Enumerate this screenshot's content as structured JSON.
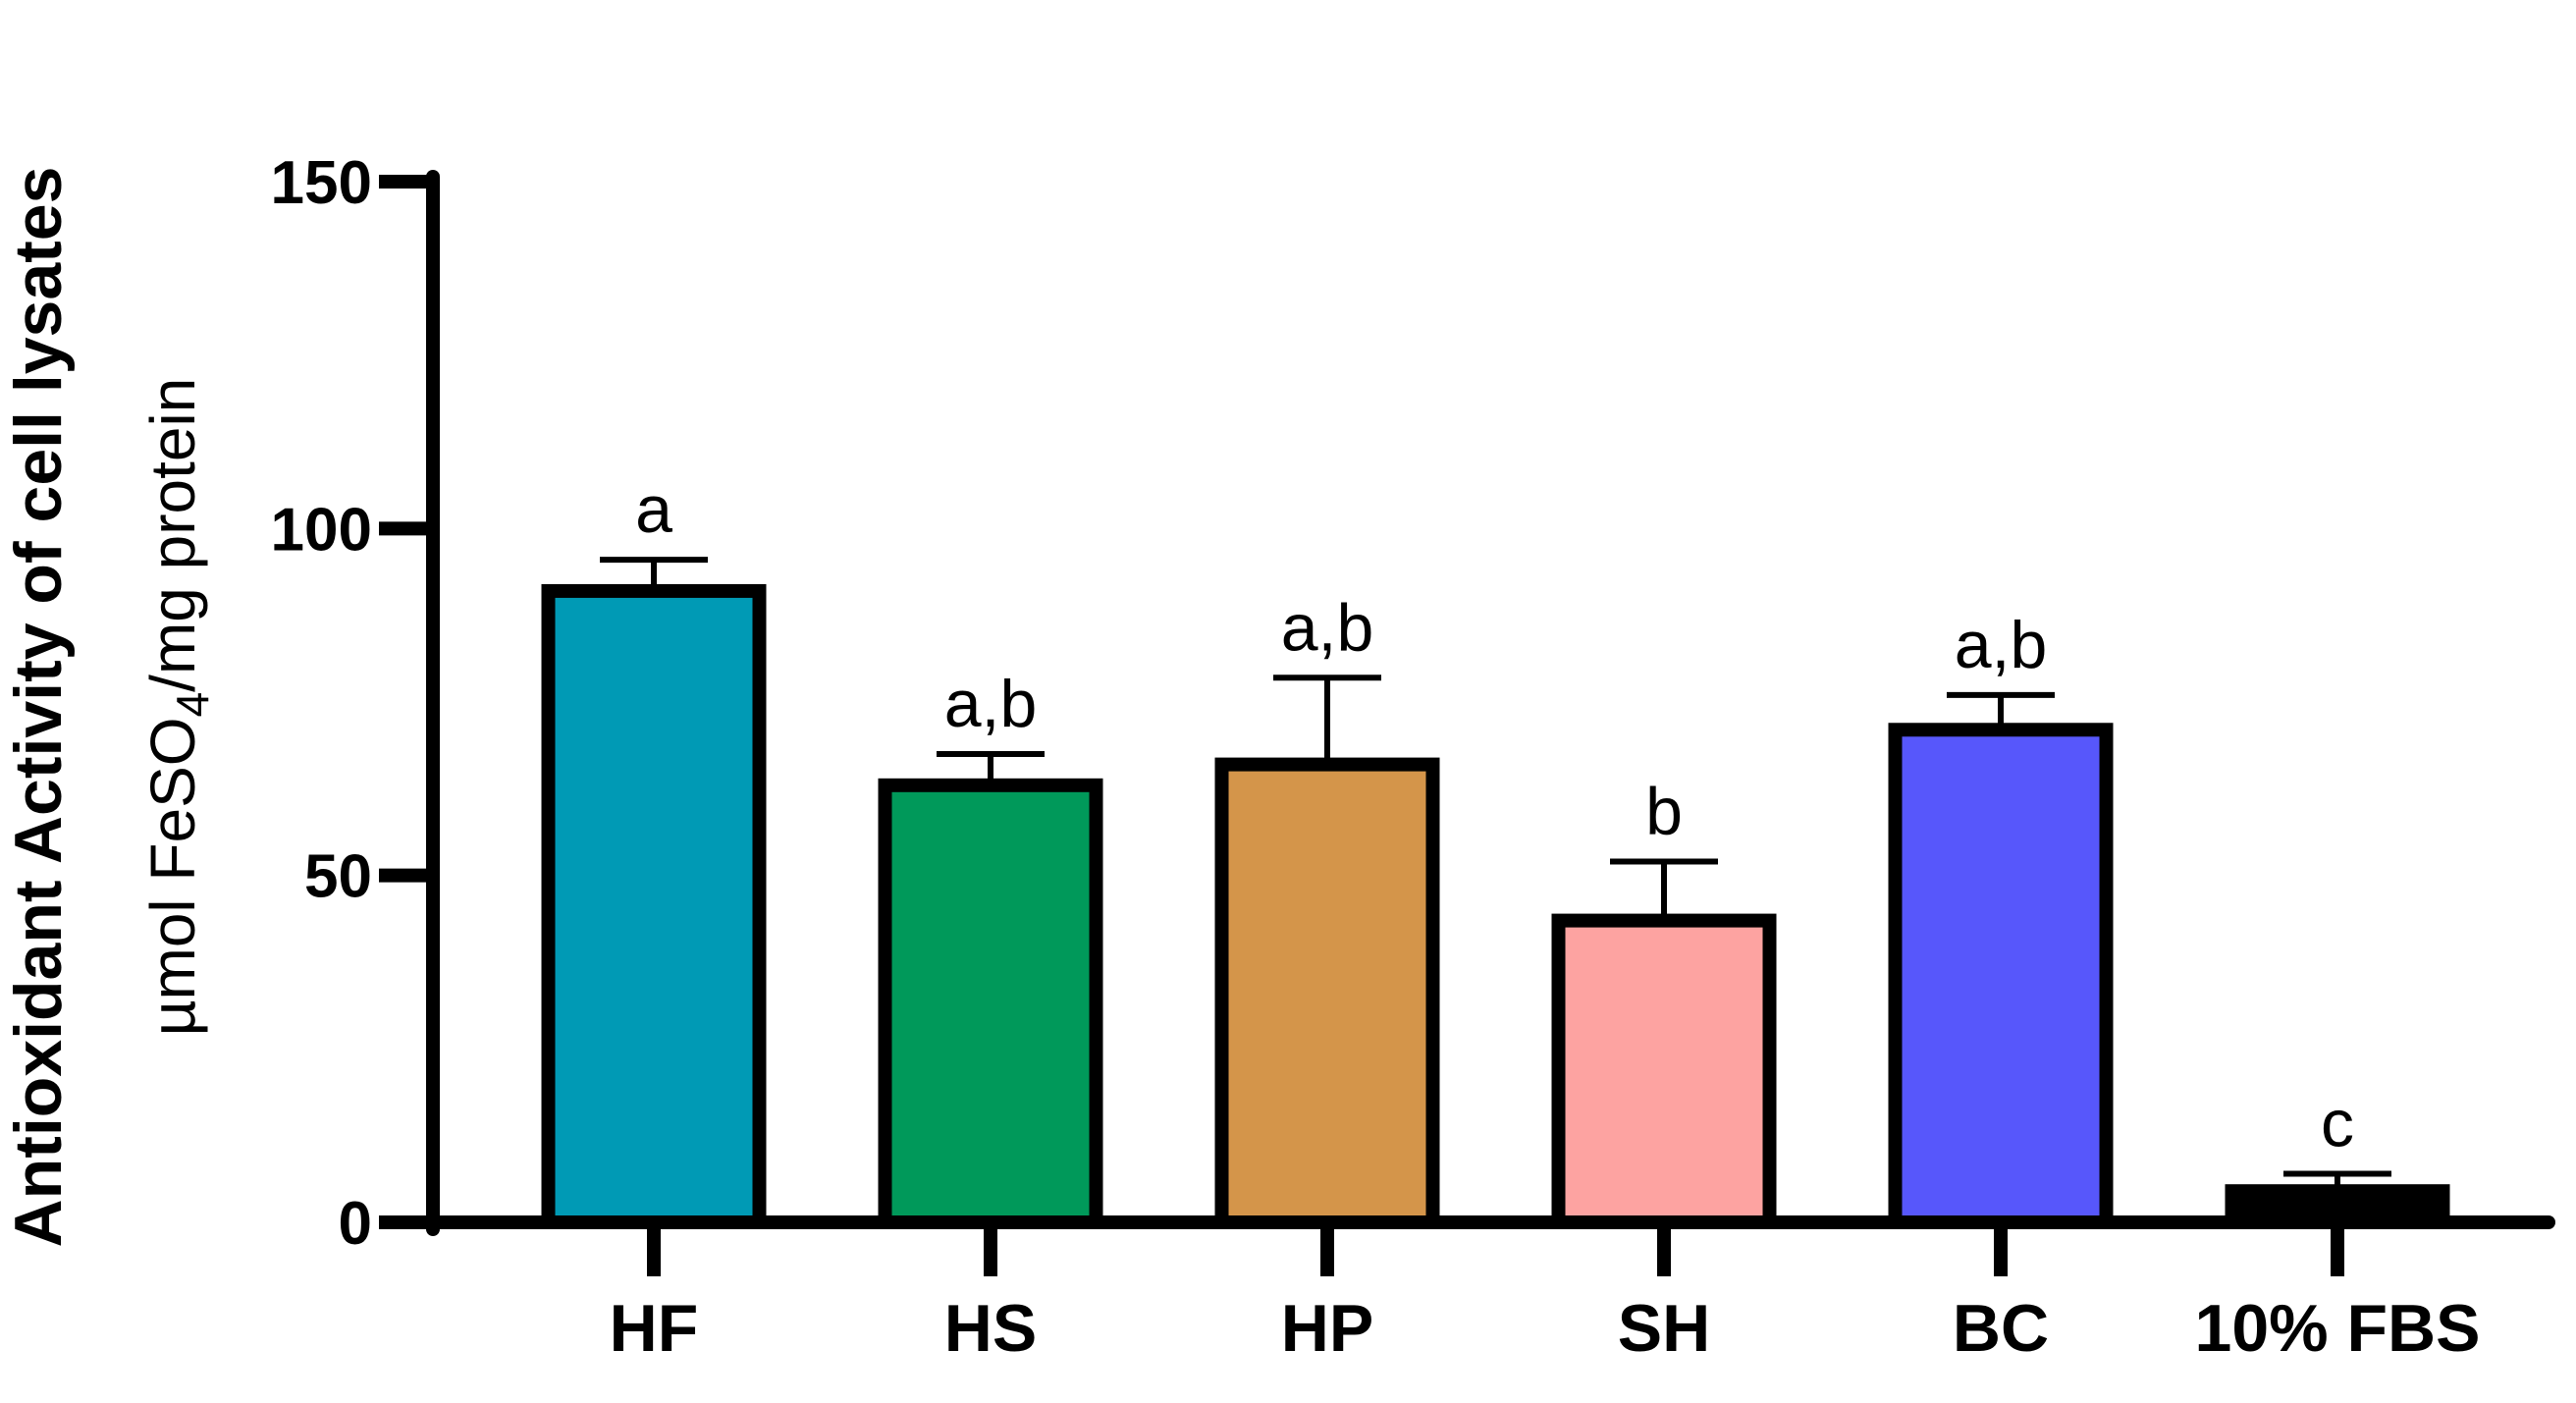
{
  "chart_data": {
    "type": "bar",
    "title": "",
    "ylabel": "Antioxidant Activity of cell lysates",
    "ylabel_unit": {
      "prefix": "µmol FeSO",
      "subscript": "4",
      "suffix": "/mg protein"
    },
    "xlabel": "",
    "ylim": [
      0,
      150
    ],
    "yticks": [
      0,
      50,
      100,
      150
    ],
    "grid": false,
    "categories": [
      "HF",
      "HS",
      "HP",
      "SH",
      "BC",
      "10% FBS"
    ],
    "values": [
      91,
      63,
      66,
      43.5,
      71,
      4.5
    ],
    "errors": [
      4.5,
      4.5,
      12.5,
      8.5,
      5,
      2.5
    ],
    "significance": [
      "a",
      "a,b",
      "a,b",
      "b",
      "a,b",
      "c"
    ],
    "colors": [
      "#009AB5",
      "#00995A",
      "#D4954A",
      "#FDA3A1",
      "#5757FB",
      "#000000"
    ]
  }
}
